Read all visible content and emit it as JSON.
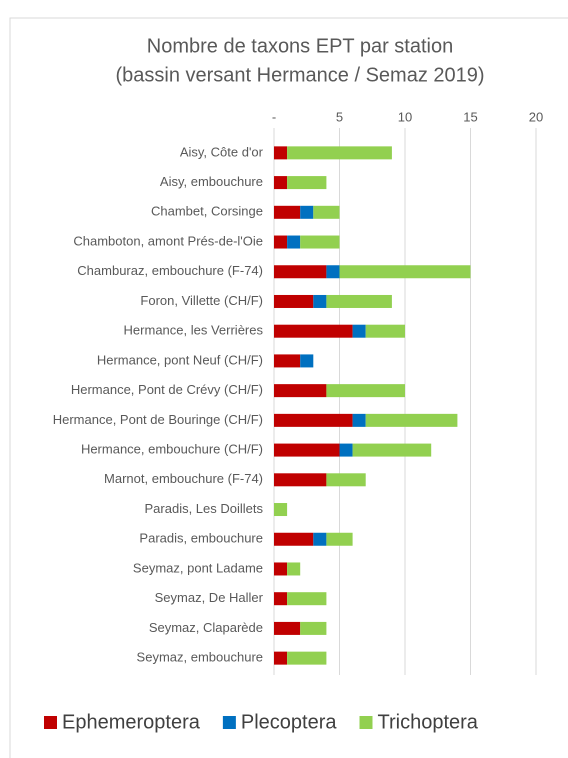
{
  "chart_data": {
    "type": "stacked_barh",
    "title": [
      "Nombre de taxons EPT par station",
      "(bassin versant Hermance / Semaz 2019)"
    ],
    "categories": [
      "Aisy, Côte d'or",
      "Aisy, embouchure",
      "Chambet, Corsinge",
      "Chamboton, amont Prés-de-l'Oie",
      "Chamburaz, embouchure (F-74)",
      "Foron, Villette (CH/F)",
      "Hermance, les Verrières",
      "Hermance, pont Neuf (CH/F)",
      "Hermance, Pont de Crévy (CH/F)",
      "Hermance, Pont de Bouringe (CH/F)",
      "Hermance, embouchure  (CH/F)",
      "Marnot, embouchure (F-74)",
      "Paradis, Les Doillets",
      "Paradis, embouchure",
      "Seymaz, pont Ladame",
      "Seymaz, De Haller",
      "Seymaz, Claparède",
      "Seymaz, embouchure"
    ],
    "series": [
      {
        "name": "Ephemeroptera",
        "color": "#c00000",
        "values": [
          1,
          1,
          2,
          1,
          4,
          3,
          6,
          2,
          4,
          6,
          5,
          4,
          0,
          3,
          1,
          1,
          2,
          1
        ]
      },
      {
        "name": "Plecoptera",
        "color": "#0070c0",
        "values": [
          0,
          0,
          1,
          1,
          1,
          1,
          1,
          1,
          0,
          1,
          1,
          0,
          0,
          1,
          0,
          0,
          0,
          0
        ]
      },
      {
        "name": "Trichoptera",
        "color": "#92d050",
        "values": [
          8,
          3,
          2,
          3,
          10,
          5,
          3,
          0,
          6,
          7,
          6,
          3,
          1,
          2,
          1,
          3,
          2,
          3
        ]
      }
    ],
    "xlim": [
      0,
      20
    ],
    "xticks": [
      {
        "value": 0,
        "label": "-"
      },
      5,
      10,
      15,
      20
    ],
    "grid": true,
    "legend": "bottom"
  }
}
